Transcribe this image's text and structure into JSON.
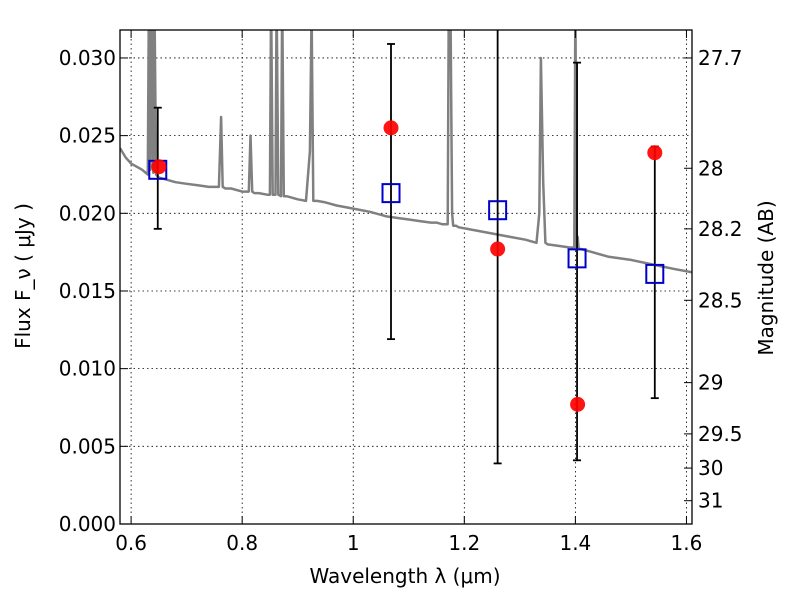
{
  "chart_data": {
    "type": "scatter",
    "xlabel": "Wavelength  λ (μm)",
    "ylabel": "Flux  F_ν  ( μJy )",
    "y2label": "Magnitude (AB)",
    "xlim": [
      0.58,
      1.61
    ],
    "ylim": [
      0.0,
      0.0318
    ],
    "grid": true,
    "x_ticks": [
      0.6,
      0.8,
      1.0,
      1.2,
      1.4,
      1.6
    ],
    "x_tick_labels": [
      "0.6",
      "0.8",
      "1",
      "1.2",
      "1.4",
      "1.6"
    ],
    "y_ticks": [
      0.0,
      0.005,
      0.01,
      0.015,
      0.02,
      0.025,
      0.03
    ],
    "y_tick_labels": [
      "0.000",
      "0.005",
      "0.010",
      "0.015",
      "0.020",
      "0.025",
      "0.030"
    ],
    "y2_ticks": [
      {
        "label": "27.7",
        "flux": 0.03
      },
      {
        "label": "28",
        "flux": 0.0229
      },
      {
        "label": "28.2",
        "flux": 0.019
      },
      {
        "label": "28.5",
        "flux": 0.0144
      },
      {
        "label": "29",
        "flux": 0.0091
      },
      {
        "label": "29.5",
        "flux": 0.0058
      },
      {
        "label": "30",
        "flux": 0.0036
      },
      {
        "label": "31",
        "flux": 0.0015
      }
    ],
    "series": [
      {
        "kind": "line",
        "color": "#808080",
        "x": [
          0.58,
          0.59,
          0.6,
          0.61,
          0.62,
          0.63,
          0.632,
          0.635,
          0.637,
          0.64,
          0.642,
          0.645,
          0.65,
          0.66,
          0.68,
          0.7,
          0.72,
          0.74,
          0.75,
          0.758,
          0.762,
          0.765,
          0.77,
          0.78,
          0.8,
          0.812,
          0.815,
          0.818,
          0.822,
          0.83,
          0.845,
          0.85,
          0.852,
          0.855,
          0.86,
          0.862,
          0.865,
          0.87,
          0.872,
          0.875,
          0.878,
          0.88,
          0.9,
          0.915,
          0.922,
          0.925,
          0.928,
          0.935,
          0.95,
          0.97,
          1.0,
          1.03,
          1.06,
          1.08,
          1.1,
          1.12,
          1.14,
          1.15,
          1.16,
          1.17,
          1.172,
          1.175,
          1.178,
          1.18,
          1.185,
          1.19,
          1.22,
          1.25,
          1.28,
          1.31,
          1.33,
          1.335,
          1.338,
          1.342,
          1.346,
          1.35,
          1.37,
          1.39,
          1.398,
          1.4,
          1.402,
          1.404,
          1.406,
          1.41,
          1.43,
          1.46,
          1.5,
          1.54,
          1.58,
          1.61
        ],
        "y": [
          0.0242,
          0.0236,
          0.0232,
          0.023,
          0.0228,
          0.0225,
          0.034,
          0.0228,
          0.034,
          0.0226,
          0.034,
          0.0225,
          0.0223,
          0.0222,
          0.022,
          0.0219,
          0.0218,
          0.0217,
          0.0217,
          0.0217,
          0.0262,
          0.0217,
          0.0216,
          0.0216,
          0.0214,
          0.0214,
          0.025,
          0.0214,
          0.0213,
          0.0213,
          0.0212,
          0.0212,
          0.034,
          0.0212,
          0.0212,
          0.034,
          0.0212,
          0.0211,
          0.034,
          0.0211,
          0.0211,
          0.0211,
          0.0209,
          0.0208,
          0.024,
          0.033,
          0.0208,
          0.0208,
          0.0207,
          0.0205,
          0.0203,
          0.0201,
          0.0198,
          0.0197,
          0.0196,
          0.0195,
          0.0194,
          0.0194,
          0.0193,
          0.0193,
          0.034,
          0.034,
          0.02,
          0.0192,
          0.0192,
          0.0191,
          0.0189,
          0.0187,
          0.0185,
          0.0183,
          0.0181,
          0.02,
          0.03,
          0.022,
          0.0181,
          0.018,
          0.0179,
          0.0178,
          0.0178,
          0.034,
          0.0178,
          0.0185,
          0.0177,
          0.0177,
          0.0175,
          0.0172,
          0.017,
          0.0167,
          0.0164,
          0.0162
        ]
      },
      {
        "kind": "errorbar",
        "color": "#000000",
        "x": [
          0.648,
          1.068,
          1.26,
          1.403,
          1.543
        ],
        "y": [
          0.0229,
          0.0214,
          0.0198,
          0.0169,
          0.0162
        ],
        "err": [
          0.0039,
          0.0095,
          0.0159,
          0.0128,
          0.0081
        ]
      },
      {
        "kind": "scatter",
        "marker": "square-open",
        "color": "#0000cc",
        "x": [
          0.648,
          1.068,
          1.26,
          1.403,
          1.543
        ],
        "y": [
          0.0228,
          0.0213,
          0.0202,
          0.0171,
          0.0161
        ]
      },
      {
        "kind": "scatter",
        "marker": "circle-filled",
        "color": "#ff0000",
        "x": [
          0.65,
          1.068,
          1.26,
          1.404,
          1.543
        ],
        "y": [
          0.023,
          0.0255,
          0.0177,
          0.0077,
          0.0239
        ]
      }
    ]
  }
}
